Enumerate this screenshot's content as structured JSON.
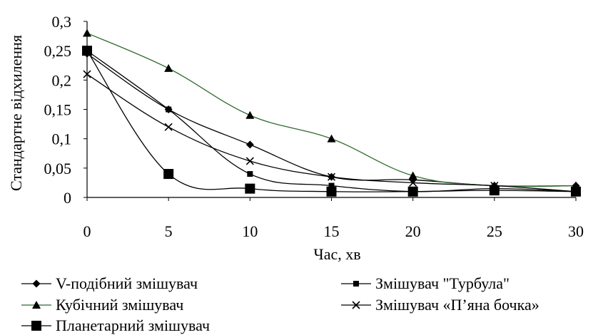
{
  "chart_data": {
    "type": "line",
    "xlabel": "Час, хв",
    "ylabel": "Стандартне відхилення",
    "xlim": [
      0,
      30
    ],
    "ylim": [
      0,
      0.3
    ],
    "x_ticks": [
      "0",
      "5",
      "10",
      "15",
      "20",
      "25",
      "30"
    ],
    "y_ticks": [
      "0",
      "0,05",
      "0,1",
      "0,15",
      "0,2",
      "0,25",
      "0,3"
    ],
    "grid": false,
    "legend_position": "bottom",
    "series": [
      {
        "name": "V-подібний змішувач",
        "marker": "diamond",
        "color": "#000000",
        "x": [
          0,
          5,
          10,
          15,
          20,
          25,
          30
        ],
        "y": [
          0.245,
          0.15,
          0.09,
          0.035,
          0.03,
          0.02,
          0.02
        ]
      },
      {
        "name": "Змішувач \"Турбула\"",
        "marker": "square-small",
        "color": "#000000",
        "x": [
          0,
          5,
          10,
          15,
          20,
          25,
          30
        ],
        "y": [
          0.25,
          0.15,
          0.04,
          0.02,
          0.01,
          0.015,
          0.01
        ]
      },
      {
        "name": "Кубічний змішувач",
        "marker": "triangle",
        "color": "#2f6b2f",
        "x": [
          0,
          5,
          10,
          15,
          20,
          25,
          30
        ],
        "y": [
          0.28,
          0.22,
          0.14,
          0.1,
          0.037,
          0.02,
          0.02
        ]
      },
      {
        "name": "Змішувач «П’яна бочка»",
        "marker": "x",
        "color": "#000000",
        "x": [
          0,
          5,
          10,
          15,
          20,
          25,
          30
        ],
        "y": [
          0.21,
          0.12,
          0.062,
          0.035,
          0.025,
          0.02,
          0.01
        ]
      },
      {
        "name": "Планетарний змішувач",
        "marker": "square-large",
        "color": "#000000",
        "x": [
          0,
          5,
          10,
          15,
          20,
          25,
          30
        ],
        "y": [
          0.25,
          0.04,
          0.015,
          0.01,
          0.01,
          0.012,
          0.01
        ]
      }
    ]
  }
}
